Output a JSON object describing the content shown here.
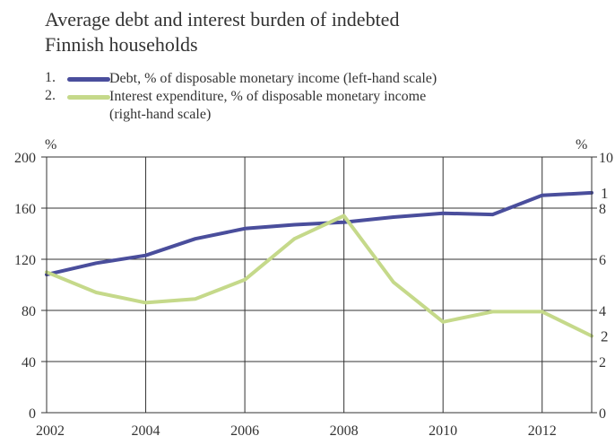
{
  "chart_data": {
    "type": "line",
    "title_lines": [
      "Average debt and interest burden of indebted",
      "Finnish households"
    ],
    "legend": [
      {
        "number": "1.",
        "text_lines": [
          "Debt, % of disposable monetary income (left-hand scale)"
        ]
      },
      {
        "number": "2.",
        "text_lines": [
          "Interest expenditure, % of disposable monetary income",
          "(right-hand scale)"
        ]
      }
    ],
    "y_left_unit": "%",
    "y_right_unit": "%",
    "y_left_lim": [
      0,
      200
    ],
    "y_right_lim": [
      0,
      10
    ],
    "y_left_ticks": [
      "0",
      "40",
      "80",
      "120",
      "160",
      "200"
    ],
    "y_right_ticks": [
      "0",
      "2",
      "4",
      "6",
      "8",
      "10"
    ],
    "x_lim": [
      2002,
      2013
    ],
    "x_ticks": [
      "2002",
      "2004",
      "2006",
      "2008",
      "2010",
      "2012"
    ],
    "grid": true,
    "series": [
      {
        "label": "1",
        "axis": "left",
        "color": "#4a4e9c",
        "x": [
          2002,
          2003,
          2004,
          2005,
          2006,
          2007,
          2008,
          2009,
          2010,
          2011,
          2012,
          2013
        ],
        "values": [
          108,
          117,
          123,
          136,
          144,
          147,
          149,
          153,
          156,
          155,
          170,
          172
        ]
      },
      {
        "label": "2",
        "axis": "right",
        "color": "#c5d98a",
        "x": [
          2002,
          2003,
          2004,
          2005,
          2006,
          2007,
          2008,
          2009,
          2010,
          2011,
          2012,
          2013
        ],
        "values": [
          5.5,
          4.7,
          4.3,
          4.45,
          5.2,
          6.8,
          7.7,
          5.1,
          3.55,
          3.95,
          3.95,
          3.0
        ]
      }
    ]
  }
}
